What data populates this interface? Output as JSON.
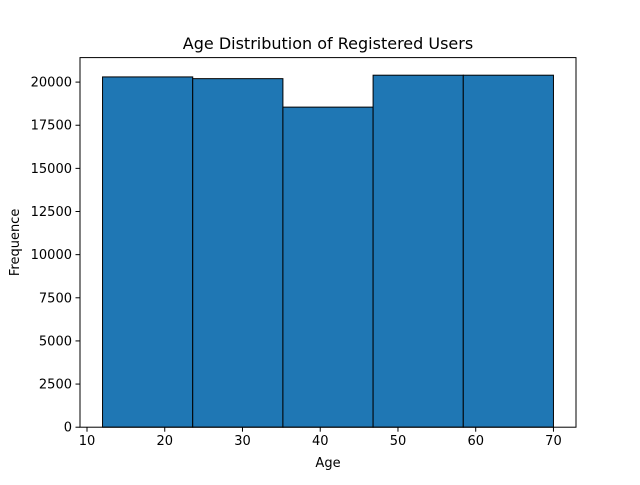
{
  "chart_data": {
    "type": "bar",
    "title": "Age Distribution of Registered Users",
    "xlabel": "Age",
    "ylabel": "Frequence",
    "bin_edges": [
      12,
      23.6,
      35.2,
      46.8,
      58.4,
      70
    ],
    "values": [
      20300,
      20200,
      18550,
      20400,
      20400
    ],
    "xlim": [
      9.1,
      72.9
    ],
    "ylim": [
      0,
      21420
    ],
    "xticks": [
      10,
      20,
      30,
      40,
      50,
      60,
      70
    ],
    "yticks": [
      0,
      2500,
      5000,
      7500,
      10000,
      12500,
      15000,
      17500,
      20000
    ],
    "grid": false,
    "bar_color": "#1f77b4",
    "edge_color": "#000000"
  }
}
